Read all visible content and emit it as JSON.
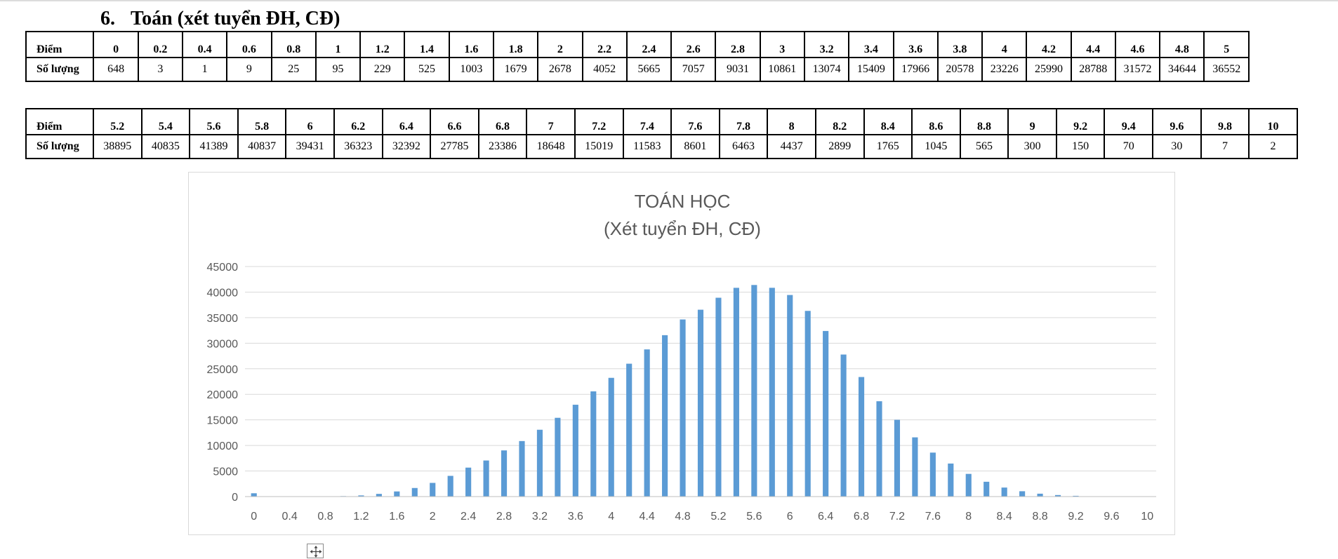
{
  "section": {
    "number": "6.",
    "title": "Toán (xét tuyển ĐH, CĐ)"
  },
  "table_labels": {
    "score": "Điểm",
    "count": "Số lượng"
  },
  "table1": {
    "scores": [
      "0",
      "0.2",
      "0.4",
      "0.6",
      "0.8",
      "1",
      "1.2",
      "1.4",
      "1.6",
      "1.8",
      "2",
      "2.2",
      "2.4",
      "2.6",
      "2.8",
      "3",
      "3.2",
      "3.4",
      "3.6",
      "3.8",
      "4",
      "4.2",
      "4.4",
      "4.6",
      "4.8",
      "5"
    ],
    "counts": [
      "648",
      "3",
      "1",
      "9",
      "25",
      "95",
      "229",
      "525",
      "1003",
      "1679",
      "2678",
      "4052",
      "5665",
      "7057",
      "9031",
      "10861",
      "13074",
      "15409",
      "17966",
      "20578",
      "23226",
      "25990",
      "28788",
      "31572",
      "34644",
      "36552"
    ]
  },
  "table2": {
    "scores": [
      "5.2",
      "5.4",
      "5.6",
      "5.8",
      "6",
      "6.2",
      "6.4",
      "6.6",
      "6.8",
      "7",
      "7.2",
      "7.4",
      "7.6",
      "7.8",
      "8",
      "8.2",
      "8.4",
      "8.6",
      "8.8",
      "9",
      "9.2",
      "9.4",
      "9.6",
      "9.8",
      "10"
    ],
    "counts": [
      "38895",
      "40835",
      "41389",
      "40837",
      "39431",
      "36323",
      "32392",
      "27785",
      "23386",
      "18648",
      "15019",
      "11583",
      "8601",
      "6463",
      "4437",
      "2899",
      "1765",
      "1045",
      "565",
      "300",
      "150",
      "70",
      "30",
      "7",
      "2"
    ]
  },
  "chart_data": {
    "type": "bar",
    "title": "TOÁN HỌC",
    "subtitle": "(Xét tuyển ĐH, CĐ)",
    "categories": [
      "0",
      "0.2",
      "0.4",
      "0.6",
      "0.8",
      "1",
      "1.2",
      "1.4",
      "1.6",
      "1.8",
      "2",
      "2.2",
      "2.4",
      "2.6",
      "2.8",
      "3",
      "3.2",
      "3.4",
      "3.6",
      "3.8",
      "4",
      "4.2",
      "4.4",
      "4.6",
      "4.8",
      "5",
      "5.2",
      "5.4",
      "5.6",
      "5.8",
      "6",
      "6.2",
      "6.4",
      "6.6",
      "6.8",
      "7",
      "7.2",
      "7.4",
      "7.6",
      "7.8",
      "8",
      "8.2",
      "8.4",
      "8.6",
      "8.8",
      "9",
      "9.2",
      "9.4",
      "9.6",
      "9.8",
      "10"
    ],
    "x_tick_labels": [
      "0",
      "0.4",
      "0.8",
      "1.2",
      "1.6",
      "2",
      "2.4",
      "2.8",
      "3.2",
      "3.6",
      "4",
      "4.4",
      "4.8",
      "5.2",
      "5.6",
      "6",
      "6.4",
      "6.8",
      "7.2",
      "7.6",
      "8",
      "8.4",
      "8.8",
      "9.2",
      "9.6",
      "10"
    ],
    "values": [
      648,
      3,
      1,
      9,
      25,
      95,
      229,
      525,
      1003,
      1679,
      2678,
      4052,
      5665,
      7057,
      9031,
      10861,
      13074,
      15409,
      17966,
      20578,
      23226,
      25990,
      28788,
      31572,
      34644,
      36552,
      38895,
      40835,
      41389,
      40837,
      39431,
      36323,
      32392,
      27785,
      23386,
      18648,
      15019,
      11583,
      8601,
      6463,
      4437,
      2899,
      1765,
      1045,
      565,
      300,
      150,
      70,
      30,
      7,
      2
    ],
    "y_ticks": [
      0,
      5000,
      10000,
      15000,
      20000,
      25000,
      30000,
      35000,
      40000,
      45000
    ],
    "ylim": [
      0,
      45000
    ],
    "xlabel": "",
    "ylabel": "",
    "grid": true,
    "legend": "none",
    "bar_color": "#5b9bd5"
  },
  "icons": {
    "move_handle": "move-arrows-icon"
  }
}
